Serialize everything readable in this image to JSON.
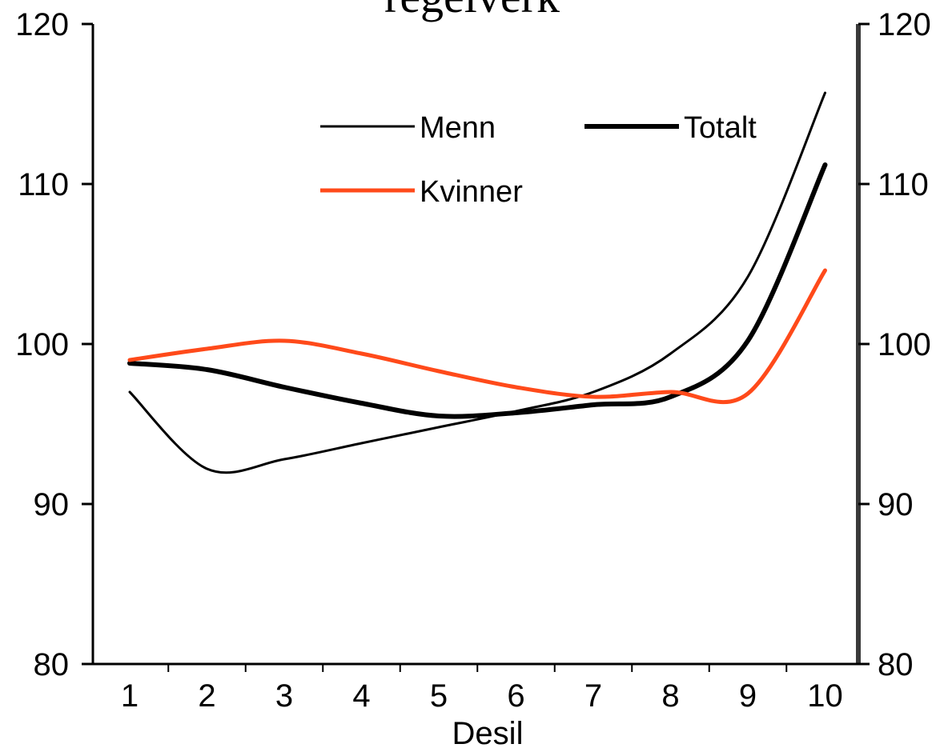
{
  "chart_data": {
    "type": "line",
    "title": "regelverk",
    "xlabel": "Desil",
    "ylabel": "",
    "x": [
      1,
      2,
      3,
      4,
      5,
      6,
      7,
      8,
      9,
      10
    ],
    "x_tick_labels": [
      "1",
      "2",
      "3",
      "4",
      "5",
      "6",
      "7",
      "8",
      "9",
      "10"
    ],
    "ylim": [
      80,
      120
    ],
    "y_ticks": [
      80,
      90,
      100,
      110,
      120
    ],
    "y_tick_labels": [
      "80",
      "90",
      "100",
      "110",
      "120"
    ],
    "secondary_y_axis": true,
    "grid": false,
    "legend_position": "top-center",
    "series": [
      {
        "name": "Menn",
        "color": "#000000",
        "style": "thin",
        "values": [
          97.0,
          92.2,
          92.8,
          93.8,
          94.8,
          95.8,
          97.0,
          99.4,
          104.2,
          115.7
        ]
      },
      {
        "name": "Totalt",
        "color": "#000000",
        "style": "thick",
        "values": [
          98.8,
          98.4,
          97.3,
          96.3,
          95.5,
          95.7,
          96.2,
          96.7,
          100.2,
          111.2
        ]
      },
      {
        "name": "Kvinner",
        "color": "#ff4a1a",
        "style": "thick",
        "values": [
          99.0,
          99.7,
          100.2,
          99.4,
          98.3,
          97.3,
          96.7,
          97.0,
          96.9,
          104.6
        ]
      }
    ]
  }
}
